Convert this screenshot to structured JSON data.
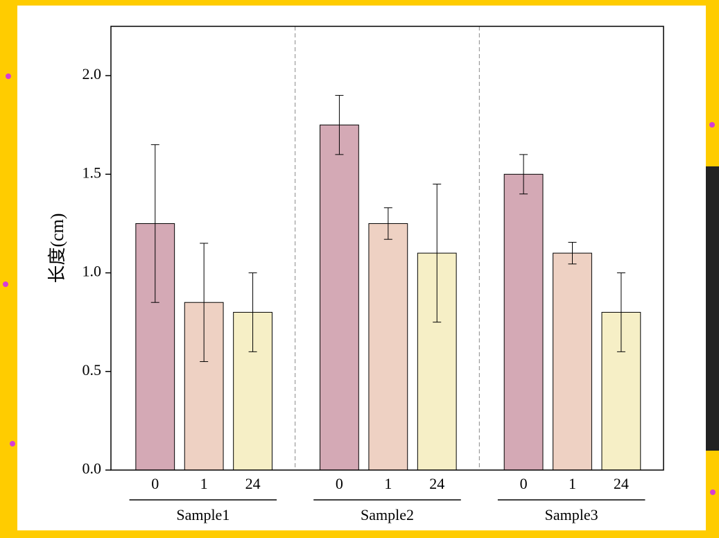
{
  "chart_data": {
    "type": "bar",
    "y_label": "长度(cm)",
    "groups": [
      "Sample1",
      "Sample2",
      "Sample3"
    ],
    "series": [
      {
        "name": "0",
        "color": "#d4a9b5",
        "values": [
          1.25,
          1.75,
          1.5
        ],
        "errors": [
          0.4,
          0.15,
          0.1
        ]
      },
      {
        "name": "1",
        "color": "#eed1c3",
        "values": [
          0.85,
          1.25,
          1.1
        ],
        "errors": [
          0.3,
          0.08,
          0.055
        ]
      },
      {
        "name": "24",
        "color": "#f6efc6",
        "values": [
          0.8,
          1.1,
          0.8
        ],
        "errors": [
          0.2,
          0.35,
          0.2
        ]
      }
    ],
    "ylim": [
      0,
      2.25
    ],
    "yticks": [
      {
        "value": 0,
        "label": "0.0"
      },
      0.5,
      {
        "value": 1,
        "label": "1.0"
      },
      1.5,
      {
        "value": 2,
        "label": "2.0"
      }
    ]
  }
}
